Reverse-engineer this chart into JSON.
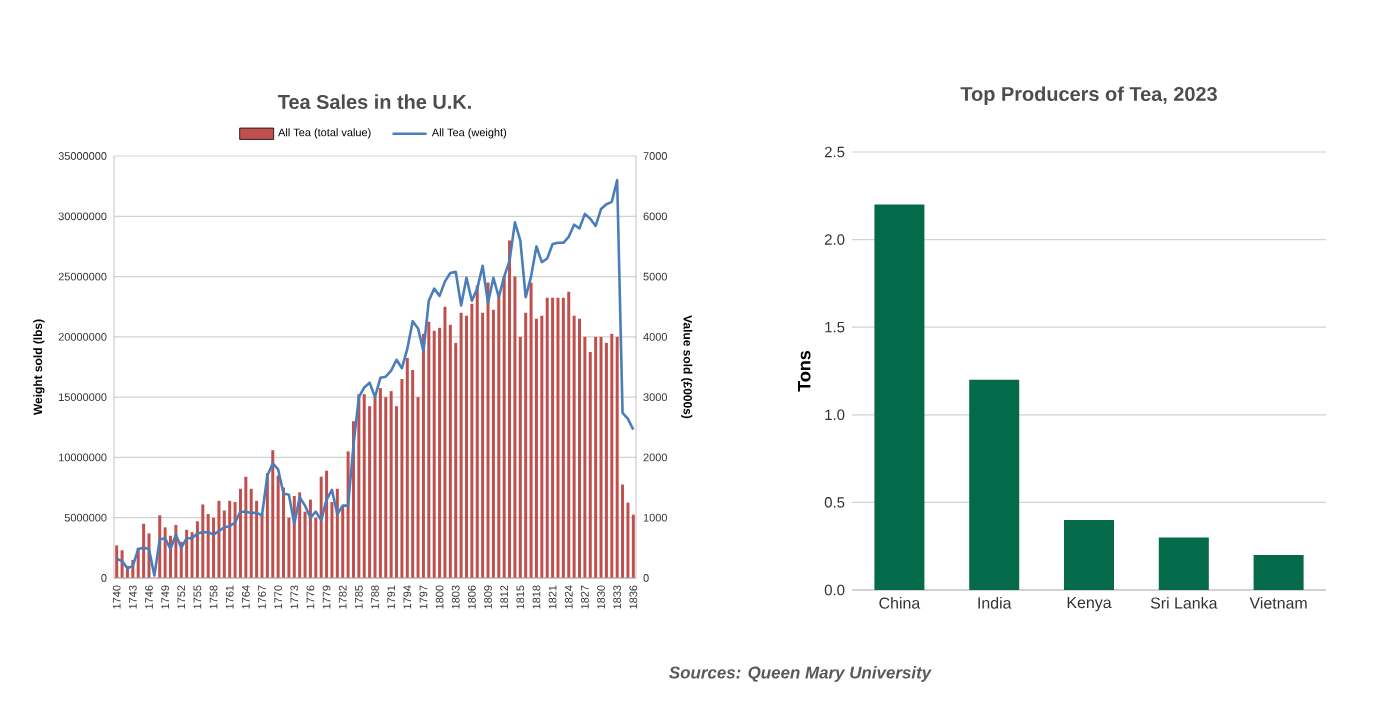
{
  "chart_data": [
    {
      "type": "bar",
      "title": "Tea Sales in the U.K.",
      "ylabel": "Weight sold (lbs)",
      "y2label": "Value sold (£000s)",
      "x": [
        1740,
        1741,
        1742,
        1743,
        1744,
        1745,
        1746,
        1747,
        1748,
        1749,
        1750,
        1751,
        1752,
        1753,
        1754,
        1755,
        1756,
        1757,
        1758,
        1759,
        1760,
        1761,
        1762,
        1763,
        1764,
        1765,
        1766,
        1767,
        1768,
        1769,
        1770,
        1771,
        1772,
        1773,
        1774,
        1775,
        1776,
        1777,
        1778,
        1779,
        1780,
        1781,
        1782,
        1783,
        1784,
        1785,
        1786,
        1787,
        1788,
        1789,
        1790,
        1791,
        1792,
        1793,
        1794,
        1795,
        1796,
        1797,
        1798,
        1799,
        1800,
        1801,
        1802,
        1803,
        1804,
        1805,
        1806,
        1807,
        1808,
        1809,
        1810,
        1811,
        1812,
        1813,
        1814,
        1815,
        1816,
        1817,
        1818,
        1819,
        1820,
        1821,
        1822,
        1823,
        1824,
        1825,
        1826,
        1827,
        1828,
        1829,
        1830,
        1831,
        1832,
        1833,
        1834,
        1835,
        1836
      ],
      "series": [
        {
          "name": "All Tea (total value)",
          "type": "bar",
          "axis": "y2",
          "color": "#c0504d",
          "values": [
            540,
            460,
            200,
            300,
            500,
            900,
            740,
            null,
            1040,
            840,
            700,
            880,
            600,
            800,
            760,
            940,
            1220,
            1060,
            1000,
            1280,
            1120,
            1280,
            1260,
            1480,
            1680,
            1480,
            1280,
            1060,
            1740,
            2120,
            1700,
            1500,
            1000,
            1360,
            1420,
            1100,
            1300,
            1000,
            1680,
            1780,
            1260,
            1480,
            1200,
            2100,
            2600,
            3050,
            3050,
            2850,
            3000,
            3150,
            3000,
            3100,
            2850,
            3300,
            3650,
            3450,
            3000,
            4050,
            4250,
            4100,
            4150,
            4500,
            4200,
            3900,
            4400,
            4350,
            4550,
            4850,
            4400,
            4900,
            4450,
            4700,
            5000,
            5600,
            5000,
            4000,
            4400,
            4900,
            4300,
            4350,
            4650,
            4650,
            4650,
            4650,
            4750,
            4350,
            4300,
            4000,
            3750,
            4000,
            4000,
            3900,
            4050,
            4000,
            1550,
            1250,
            1050
          ]
        },
        {
          "name": "All Tea (weight)",
          "type": "line",
          "color": "#4a7ebb",
          "values": [
            1600000,
            1400000,
            800000,
            1000000,
            2400000,
            2500000,
            2400000,
            200000,
            3200000,
            3300000,
            2400000,
            3600000,
            2500000,
            3300000,
            3300000,
            3700000,
            3800000,
            3800000,
            3600000,
            3900000,
            4200000,
            4300000,
            4600000,
            5500000,
            5500000,
            5400000,
            5400000,
            5200000,
            8500000,
            9500000,
            9000000,
            7000000,
            6900000,
            4500000,
            6700000,
            6000000,
            5000000,
            5500000,
            4800000,
            6500000,
            7300000,
            5300000,
            6000000,
            6000000,
            11000000,
            15000000,
            15800000,
            16200000,
            15000000,
            16600000,
            16700000,
            17200000,
            18100000,
            17400000,
            19000000,
            21300000,
            20700000,
            18800000,
            23000000,
            24000000,
            23400000,
            24600000,
            25300000,
            25400000,
            22600000,
            24900000,
            23000000,
            24000000,
            25900000,
            22800000,
            24900000,
            23300000,
            25000000,
            26300000,
            29500000,
            28000000,
            23300000,
            25000000,
            27500000,
            26200000,
            26500000,
            27700000,
            27800000,
            27800000,
            28300000,
            29300000,
            29000000,
            30200000,
            29800000,
            29200000,
            30600000,
            31000000,
            31200000,
            33000000,
            13700000,
            13200000,
            12300000
          ]
        }
      ],
      "xlim": [
        1739.5,
        1836.5
      ],
      "xticks": [
        1740,
        1743,
        1746,
        1749,
        1752,
        1755,
        1758,
        1761,
        1764,
        1767,
        1770,
        1773,
        1776,
        1779,
        1782,
        1785,
        1788,
        1791,
        1794,
        1797,
        1800,
        1803,
        1806,
        1809,
        1812,
        1815,
        1818,
        1821,
        1824,
        1827,
        1830,
        1833,
        1836
      ],
      "ylim": [
        0,
        35000000
      ],
      "yticks": [
        0,
        5000000,
        10000000,
        15000000,
        20000000,
        25000000,
        30000000,
        35000000
      ],
      "y2lim": [
        0,
        7000
      ],
      "y2ticks": [
        0,
        1000,
        2000,
        3000,
        4000,
        5000,
        6000,
        7000
      ],
      "grid": "y",
      "legend": "top",
      "annotations": [
        "Sources: Queen Mary University"
      ]
    },
    {
      "type": "bar",
      "title": "Top Producers of Tea, 2023",
      "ylabel": "Tons",
      "categories": [
        "China",
        "India",
        "Kenya",
        "Sri Lanka",
        "Vietnam"
      ],
      "values": [
        2.2,
        1.2,
        0.4,
        0.3,
        0.2
      ],
      "color": "#046a4a",
      "ylim": [
        0,
        2.5
      ],
      "yticks": [
        {
          "value": 0,
          "label": "0.0"
        },
        {
          "value": 0.5,
          "label": "0.5"
        },
        {
          "value": 1,
          "label": "1.0"
        },
        {
          "value": 1.5,
          "label": "1.5"
        },
        {
          "value": 2,
          "label": "2.0"
        },
        {
          "value": 2.5,
          "label": "2.5"
        }
      ],
      "grid": "y"
    }
  ]
}
